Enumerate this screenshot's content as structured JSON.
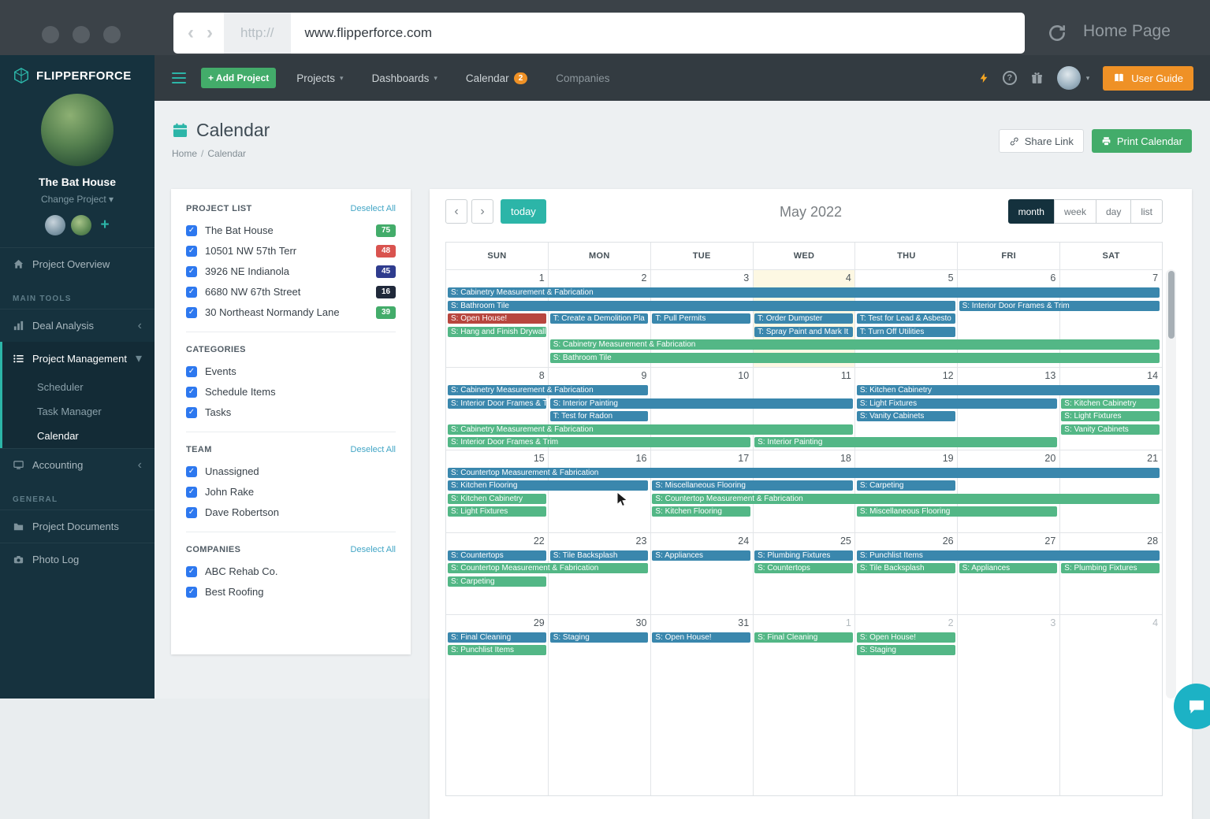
{
  "theme": {
    "accent": "#2cb5a8",
    "green": "#43ac6a",
    "orange": "#ef9126",
    "checkbox_blue": "#2d78ef"
  },
  "browser": {
    "scheme": "http://",
    "url": "www.flipperforce.com",
    "home_label": "Home Page"
  },
  "navbar": {
    "add_project_label": "+ Add Project",
    "items": [
      {
        "label": "Projects",
        "caret": true
      },
      {
        "label": "Dashboards",
        "caret": true
      },
      {
        "label": "Calendar",
        "badge": "2"
      },
      {
        "label": "Companies",
        "dim": true
      }
    ],
    "user_guide_label": "User Guide"
  },
  "sidebar": {
    "brand": "FLIPPERFORCE",
    "project_name": "The Bat House",
    "change_project_label": "Change Project",
    "project_overview": "Project Overview",
    "main_tools_label": "MAIN TOOLS",
    "deal_analysis": "Deal Analysis",
    "project_management": "Project Management",
    "submenu": [
      "Scheduler",
      "Task Manager",
      "Calendar"
    ],
    "active_submenu": "Calendar",
    "accounting": "Accounting",
    "general_label": "GENERAL",
    "project_documents": "Project Documents",
    "photo_log": "Photo Log"
  },
  "page": {
    "title": "Calendar",
    "breadcrumb": [
      "Home",
      "Calendar"
    ],
    "share_label": "Share Link",
    "print_label": "Print Calendar"
  },
  "filters": {
    "project_list": {
      "title": "PROJECT LIST",
      "deselect_label": "Deselect All",
      "items": [
        {
          "label": "The Bat House",
          "count": "75",
          "badge_color": "#43ac6a"
        },
        {
          "label": "10501 NW 57th Terr",
          "count": "48",
          "badge_color": "#d9534f"
        },
        {
          "label": "3926 NE Indianola",
          "count": "45",
          "badge_color": "#2f3c8e"
        },
        {
          "label": "6680 NW 67th Street",
          "count": "16",
          "badge_color": "#20293a"
        },
        {
          "label": "30 Northeast Normandy Lane",
          "count": "39",
          "badge_color": "#43ac6a"
        }
      ]
    },
    "categories": {
      "title": "CATEGORIES",
      "items": [
        "Events",
        "Schedule Items",
        "Tasks"
      ]
    },
    "team": {
      "title": "TEAM",
      "deselect_label": "Deselect All",
      "items": [
        "Unassigned",
        "John Rake",
        "Dave Robertson"
      ]
    },
    "companies": {
      "title": "COMPANIES",
      "deselect_label": "Deselect All",
      "items": [
        "ABC Rehab Co.",
        "Best Roofing"
      ]
    }
  },
  "calendar": {
    "today_label": "today",
    "title": "May 2022",
    "views": [
      "month",
      "week",
      "day",
      "list"
    ],
    "active_view": "month",
    "day_headers": [
      "SUN",
      "MON",
      "TUE",
      "WED",
      "THU",
      "FRI",
      "SAT"
    ],
    "event_colors": {
      "blue": "#3a87ad",
      "green": "#53b786",
      "red": "#b8463e"
    },
    "weeks": [
      {
        "dates": [
          "1",
          "2",
          "3",
          "4",
          "5",
          "6",
          "7"
        ],
        "today_index": 3,
        "min_height": 124,
        "lines": [
          [
            {
              "col": 0,
              "span": 7,
              "color": "blue",
              "label": "S:  Cabinetry Measurement & Fabrication"
            }
          ],
          [
            {
              "col": 0,
              "span": 5,
              "color": "blue",
              "label": "S:  Bathroom Tile"
            },
            {
              "col": 5,
              "span": 2,
              "color": "blue",
              "label": "S:  Interior Door Frames & Trim"
            }
          ],
          [
            {
              "col": 0,
              "span": 1,
              "color": "red",
              "label": "S:  Open House!"
            },
            {
              "col": 1,
              "span": 1,
              "color": "blue",
              "label": "T:  Create a Demolition Pla"
            },
            {
              "col": 2,
              "span": 1,
              "color": "blue",
              "label": "T:  Pull Permits"
            },
            {
              "col": 3,
              "span": 1,
              "color": "blue",
              "label": "T:  Order Dumpster"
            },
            {
              "col": 4,
              "span": 1,
              "color": "blue",
              "label": "T:  Test for Lead & Asbesto"
            }
          ],
          [
            {
              "col": 0,
              "span": 1,
              "color": "green",
              "label": "S:  Hang and Finish Drywall"
            },
            {
              "col": 3,
              "span": 1,
              "color": "blue",
              "label": "T:  Spray Paint and Mark It"
            },
            {
              "col": 4,
              "span": 1,
              "color": "blue",
              "label": "T:  Turn Off Utilities"
            }
          ],
          [
            {
              "col": 1,
              "span": 6,
              "color": "green",
              "label": "S:  Cabinetry Measurement & Fabrication"
            }
          ],
          [
            {
              "col": 1,
              "span": 6,
              "color": "green",
              "label": "S:  Bathroom Tile"
            }
          ]
        ]
      },
      {
        "dates": [
          "8",
          "9",
          "10",
          "11",
          "12",
          "13",
          "14"
        ],
        "min_height": 104,
        "lines": [
          [
            {
              "col": 0,
              "span": 2,
              "color": "blue",
              "label": "S:  Cabinetry Measurement & Fabrication"
            },
            {
              "col": 4,
              "span": 3,
              "color": "blue",
              "label": "S:  Kitchen Cabinetry"
            }
          ],
          [
            {
              "col": 0,
              "span": 1,
              "color": "blue",
              "label": "S:  Interior Door Frames & T"
            },
            {
              "col": 1,
              "span": 3,
              "color": "blue",
              "label": "S:  Interior Painting"
            },
            {
              "col": 4,
              "span": 2,
              "color": "blue",
              "label": "S:  Light Fixtures"
            },
            {
              "col": 6,
              "span": 1,
              "color": "green",
              "label": "S:  Kitchen Cabinetry"
            }
          ],
          [
            {
              "col": 1,
              "span": 1,
              "color": "blue",
              "label": "T:  Test for Radon"
            },
            {
              "col": 4,
              "span": 1,
              "color": "blue",
              "label": "S:  Vanity Cabinets"
            },
            {
              "col": 6,
              "span": 1,
              "color": "green",
              "label": "S:  Light Fixtures"
            }
          ],
          [
            {
              "col": 0,
              "span": 4,
              "color": "green",
              "label": "S:  Cabinetry Measurement & Fabrication"
            },
            {
              "col": 6,
              "span": 1,
              "color": "green",
              "label": "S:  Vanity Cabinets"
            }
          ],
          [
            {
              "col": 0,
              "span": 3,
              "color": "green",
              "label": "S:  Interior Door Frames & Trim"
            },
            {
              "col": 3,
              "span": 3,
              "color": "green",
              "label": "S:  Interior Painting"
            }
          ]
        ]
      },
      {
        "dates": [
          "15",
          "16",
          "17",
          "18",
          "19",
          "20",
          "21"
        ],
        "min_height": 105,
        "lines": [
          [
            {
              "col": 0,
              "span": 7,
              "color": "blue",
              "label": "S:  Countertop Measurement & Fabrication"
            }
          ],
          [
            {
              "col": 0,
              "span": 2,
              "color": "blue",
              "label": "S:  Kitchen Flooring"
            },
            {
              "col": 2,
              "span": 2,
              "color": "blue",
              "label": "S:  Miscellaneous Flooring"
            },
            {
              "col": 4,
              "span": 1,
              "color": "blue",
              "label": "S:  Carpeting"
            }
          ],
          [
            {
              "col": 0,
              "span": 1,
              "color": "green",
              "label": "S:  Kitchen Cabinetry"
            },
            {
              "col": 2,
              "span": 5,
              "color": "green",
              "label": "S:  Countertop Measurement & Fabrication"
            }
          ],
          [
            {
              "col": 0,
              "span": 1,
              "color": "green",
              "label": "S:  Light Fixtures"
            },
            {
              "col": 2,
              "span": 1,
              "color": "green",
              "label": "S:  Kitchen Flooring"
            },
            {
              "col": 4,
              "span": 2,
              "color": "green",
              "label": "S:  Miscellaneous Flooring"
            }
          ]
        ]
      },
      {
        "dates": [
          "22",
          "23",
          "24",
          "25",
          "26",
          "27",
          "28"
        ],
        "min_height": 104,
        "lines": [
          [
            {
              "col": 0,
              "span": 1,
              "color": "blue",
              "label": "S:  Countertops"
            },
            {
              "col": 1,
              "span": 1,
              "color": "blue",
              "label": "S:  Tile Backsplash"
            },
            {
              "col": 2,
              "span": 1,
              "color": "blue",
              "label": "S:  Appliances"
            },
            {
              "col": 3,
              "span": 1,
              "color": "blue",
              "label": "S:  Plumbing Fixtures"
            },
            {
              "col": 4,
              "span": 3,
              "color": "blue",
              "label": "S:  Punchlist Items"
            }
          ],
          [
            {
              "col": 0,
              "span": 2,
              "color": "green",
              "label": "S:  Countertop Measurement & Fabrication"
            },
            {
              "col": 3,
              "span": 1,
              "color": "green",
              "label": "S:  Countertops"
            },
            {
              "col": 4,
              "span": 1,
              "color": "green",
              "label": "S:  Tile Backsplash"
            },
            {
              "col": 5,
              "span": 1,
              "color": "green",
              "label": "S:  Appliances"
            },
            {
              "col": 6,
              "span": 1,
              "color": "green",
              "label": "S:  Plumbing Fixtures"
            }
          ],
          [
            {
              "col": 0,
              "span": 1,
              "color": "green",
              "label": "S:  Carpeting"
            }
          ]
        ]
      },
      {
        "dates": [
          "29",
          "30",
          "31",
          "1",
          "2",
          "3",
          "4"
        ],
        "other_from": 3,
        "min_height": 230,
        "lines": [
          [
            {
              "col": 0,
              "span": 1,
              "color": "blue",
              "label": "S:  Final Cleaning"
            },
            {
              "col": 1,
              "span": 1,
              "color": "blue",
              "label": "S:  Staging"
            },
            {
              "col": 2,
              "span": 1,
              "color": "blue",
              "label": "S:  Open House!"
            },
            {
              "col": 3,
              "span": 1,
              "color": "green",
              "label": "S:  Final Cleaning"
            },
            {
              "col": 4,
              "span": 1,
              "color": "green",
              "label": "S:  Open House!"
            }
          ],
          [
            {
              "col": 0,
              "span": 1,
              "color": "green",
              "label": "S:  Punchlist Items"
            },
            {
              "col": 4,
              "span": 1,
              "color": "green",
              "label": "S:  Staging"
            }
          ]
        ]
      }
    ]
  }
}
